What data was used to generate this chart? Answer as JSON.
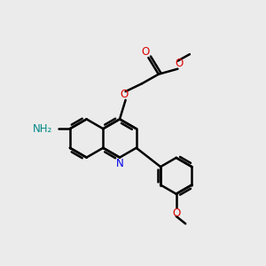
{
  "bg_color": "#ebebeb",
  "bond_color": "#000000",
  "bond_width": 1.8,
  "atom_colors": {
    "N": "#0000ee",
    "O": "#dd0000",
    "NH2": "#008888",
    "C": "#000000"
  },
  "font_size_atom": 8.5,
  "font_size_methyl": 8.0
}
